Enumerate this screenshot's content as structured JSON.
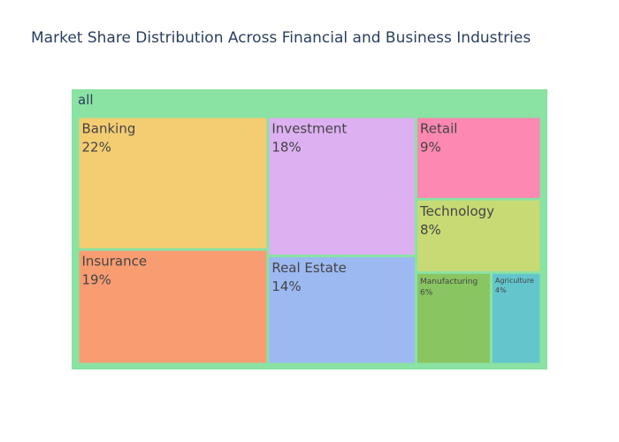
{
  "chart_data": {
    "type": "treemap",
    "title": "Market Share Distribution Across Financial and Business Industries",
    "root": {
      "label": "all",
      "color": "#8ae2a3"
    },
    "nodes": [
      {
        "label": "Banking",
        "value": 22,
        "value_label": "22%",
        "color": "#f4cd72"
      },
      {
        "label": "Insurance",
        "value": 19,
        "value_label": "19%",
        "color": "#f89d72"
      },
      {
        "label": "Investment",
        "value": 18,
        "value_label": "18%",
        "color": "#ddb0f2"
      },
      {
        "label": "Real Estate",
        "value": 14,
        "value_label": "14%",
        "color": "#9db9f2"
      },
      {
        "label": "Retail",
        "value": 9,
        "value_label": "9%",
        "color": "#fd88b1"
      },
      {
        "label": "Technology",
        "value": 8,
        "value_label": "8%",
        "color": "#c8da74"
      },
      {
        "label": "Manufacturing",
        "value": 6,
        "value_label": "6%",
        "color": "#89c561"
      },
      {
        "label": "Agriculture",
        "value": 4,
        "value_label": "4%",
        "color": "#63c6cc"
      }
    ]
  }
}
